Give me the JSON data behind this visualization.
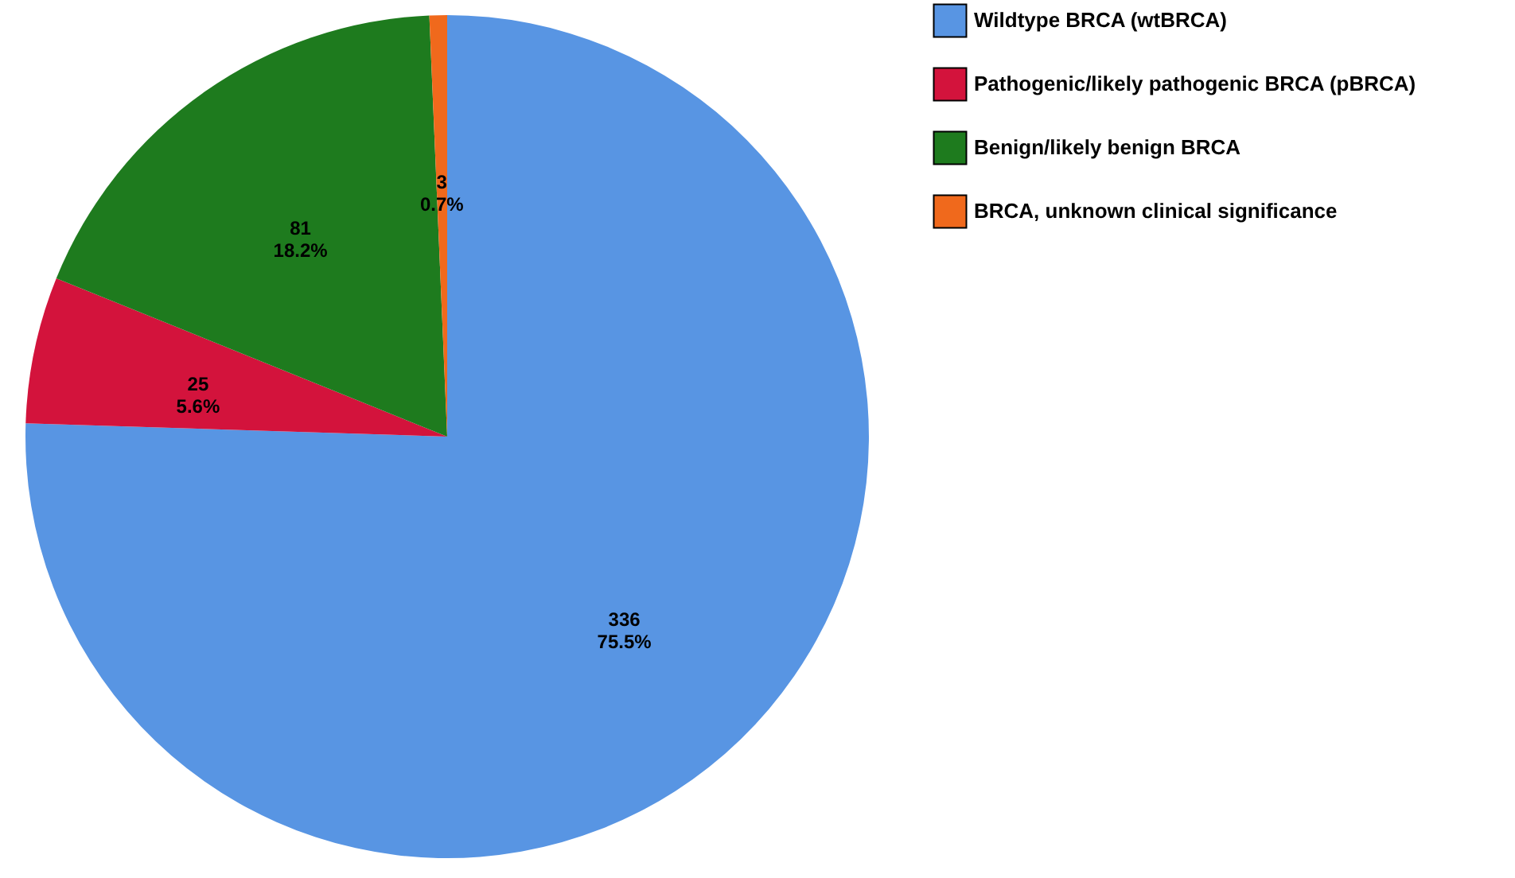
{
  "chart_data": {
    "type": "pie",
    "categories": [
      "Wildtype BRCA (wtBRCA)",
      "Pathogenic/likely pathogenic BRCA (pBRCA)",
      "Benign/likely benign BRCA",
      "BRCA, unknown clinical significance"
    ],
    "values": [
      336,
      25,
      81,
      3
    ],
    "colors": [
      "#5895e3",
      "#d3133c",
      "#1e7b1e",
      "#f0691c"
    ],
    "value_labels": [
      "336\n75.5%",
      "25\n5.6%",
      "81\n18.2%",
      "3\n0.7%"
    ],
    "legend": "right"
  }
}
